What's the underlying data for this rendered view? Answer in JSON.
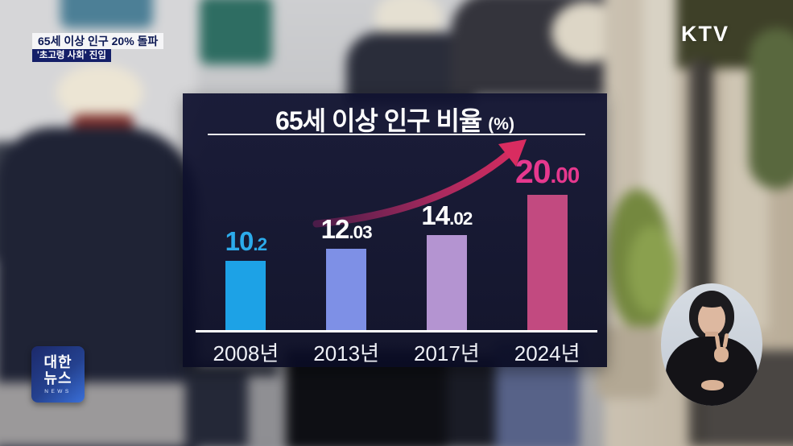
{
  "channel_logo": "KTV",
  "headlines": {
    "primary": "65세 이상 인구 20% 돌파",
    "secondary": "'초고령 사회' 진입"
  },
  "news_logo": {
    "top": "대한",
    "bottom": "뉴스",
    "caption": "NEWS"
  },
  "chart_data": {
    "type": "bar",
    "title": "65세 이상 인구 비율",
    "unit": "(%)",
    "categories": [
      "2008년",
      "2013년",
      "2017년",
      "2024년"
    ],
    "values": [
      10.2,
      12.03,
      14.02,
      20.0
    ],
    "value_labels": [
      "10.2",
      "12.03",
      "14.02",
      "20.00"
    ],
    "bar_colors": [
      "#1da2e6",
      "#7e90e6",
      "#b494d1",
      "#c24a80"
    ],
    "value_label_colors": [
      "#2cabeb",
      "#ffffff",
      "#ffffff",
      "#e6388e"
    ],
    "ylim": [
      0,
      22
    ],
    "grid": false,
    "legend": null,
    "axis_line_color": "#ffffff",
    "annotation": {
      "type": "trend-arrow",
      "direction": "up-right",
      "gradient": [
        "#4b1c49",
        "#a82a5e",
        "#d92c60"
      ]
    }
  }
}
